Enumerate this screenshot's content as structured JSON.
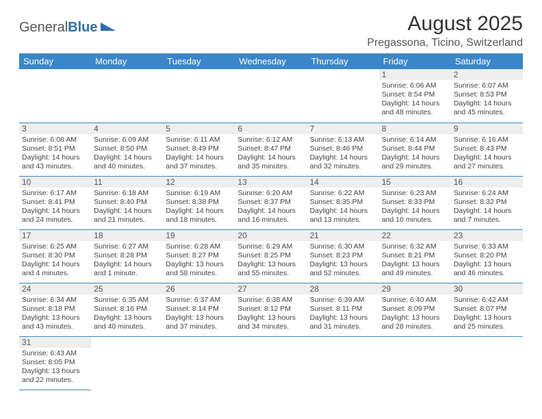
{
  "brand": {
    "text1": "General",
    "text2": "Blue"
  },
  "title": {
    "month": "August 2025",
    "location": "Pregassona, Ticino, Switzerland"
  },
  "colors": {
    "header_bg": "#3a86c8",
    "header_fg": "#ffffff",
    "daynum_bg": "#eeeeee",
    "row_border": "#3a86c8",
    "body_text": "#444444",
    "brand_accent": "#2d6fb0"
  },
  "typography": {
    "title_month_fontsize": 30,
    "title_loc_fontsize": 16,
    "weekday_fontsize": 13,
    "daynum_fontsize": 12,
    "cell_fontsize": 10.5
  },
  "weekdays": [
    "Sunday",
    "Monday",
    "Tuesday",
    "Wednesday",
    "Thursday",
    "Friday",
    "Saturday"
  ],
  "cells": [
    null,
    null,
    null,
    null,
    null,
    {
      "d": "1",
      "sr": "6:06 AM",
      "ss": "8:54 PM",
      "dl": "14 hours and 48 minutes."
    },
    {
      "d": "2",
      "sr": "6:07 AM",
      "ss": "8:53 PM",
      "dl": "14 hours and 45 minutes."
    },
    {
      "d": "3",
      "sr": "6:08 AM",
      "ss": "8:51 PM",
      "dl": "14 hours and 43 minutes."
    },
    {
      "d": "4",
      "sr": "6:09 AM",
      "ss": "8:50 PM",
      "dl": "14 hours and 40 minutes."
    },
    {
      "d": "5",
      "sr": "6:11 AM",
      "ss": "8:49 PM",
      "dl": "14 hours and 37 minutes."
    },
    {
      "d": "6",
      "sr": "6:12 AM",
      "ss": "8:47 PM",
      "dl": "14 hours and 35 minutes."
    },
    {
      "d": "7",
      "sr": "6:13 AM",
      "ss": "8:46 PM",
      "dl": "14 hours and 32 minutes."
    },
    {
      "d": "8",
      "sr": "6:14 AM",
      "ss": "8:44 PM",
      "dl": "14 hours and 29 minutes."
    },
    {
      "d": "9",
      "sr": "6:16 AM",
      "ss": "8:43 PM",
      "dl": "14 hours and 27 minutes."
    },
    {
      "d": "10",
      "sr": "6:17 AM",
      "ss": "8:41 PM",
      "dl": "14 hours and 24 minutes."
    },
    {
      "d": "11",
      "sr": "6:18 AM",
      "ss": "8:40 PM",
      "dl": "14 hours and 21 minutes."
    },
    {
      "d": "12",
      "sr": "6:19 AM",
      "ss": "8:38 PM",
      "dl": "14 hours and 18 minutes."
    },
    {
      "d": "13",
      "sr": "6:20 AM",
      "ss": "8:37 PM",
      "dl": "14 hours and 16 minutes."
    },
    {
      "d": "14",
      "sr": "6:22 AM",
      "ss": "8:35 PM",
      "dl": "14 hours and 13 minutes."
    },
    {
      "d": "15",
      "sr": "6:23 AM",
      "ss": "8:33 PM",
      "dl": "14 hours and 10 minutes."
    },
    {
      "d": "16",
      "sr": "6:24 AM",
      "ss": "8:32 PM",
      "dl": "14 hours and 7 minutes."
    },
    {
      "d": "17",
      "sr": "6:25 AM",
      "ss": "8:30 PM",
      "dl": "14 hours and 4 minutes."
    },
    {
      "d": "18",
      "sr": "6:27 AM",
      "ss": "8:28 PM",
      "dl": "14 hours and 1 minute."
    },
    {
      "d": "19",
      "sr": "6:28 AM",
      "ss": "8:27 PM",
      "dl": "13 hours and 58 minutes."
    },
    {
      "d": "20",
      "sr": "6:29 AM",
      "ss": "8:25 PM",
      "dl": "13 hours and 55 minutes."
    },
    {
      "d": "21",
      "sr": "6:30 AM",
      "ss": "8:23 PM",
      "dl": "13 hours and 52 minutes."
    },
    {
      "d": "22",
      "sr": "6:32 AM",
      "ss": "8:21 PM",
      "dl": "13 hours and 49 minutes."
    },
    {
      "d": "23",
      "sr": "6:33 AM",
      "ss": "8:20 PM",
      "dl": "13 hours and 46 minutes."
    },
    {
      "d": "24",
      "sr": "6:34 AM",
      "ss": "8:18 PM",
      "dl": "13 hours and 43 minutes."
    },
    {
      "d": "25",
      "sr": "6:35 AM",
      "ss": "8:16 PM",
      "dl": "13 hours and 40 minutes."
    },
    {
      "d": "26",
      "sr": "6:37 AM",
      "ss": "8:14 PM",
      "dl": "13 hours and 37 minutes."
    },
    {
      "d": "27",
      "sr": "6:38 AM",
      "ss": "8:12 PM",
      "dl": "13 hours and 34 minutes."
    },
    {
      "d": "28",
      "sr": "6:39 AM",
      "ss": "8:11 PM",
      "dl": "13 hours and 31 minutes."
    },
    {
      "d": "29",
      "sr": "6:40 AM",
      "ss": "8:09 PM",
      "dl": "13 hours and 28 minutes."
    },
    {
      "d": "30",
      "sr": "6:42 AM",
      "ss": "8:07 PM",
      "dl": "13 hours and 25 minutes."
    },
    {
      "d": "31",
      "sr": "6:43 AM",
      "ss": "8:05 PM",
      "dl": "13 hours and 22 minutes."
    },
    null,
    null,
    null,
    null,
    null,
    null
  ],
  "labels": {
    "sunrise": "Sunrise: ",
    "sunset": "Sunset: ",
    "daylight": "Daylight: "
  }
}
